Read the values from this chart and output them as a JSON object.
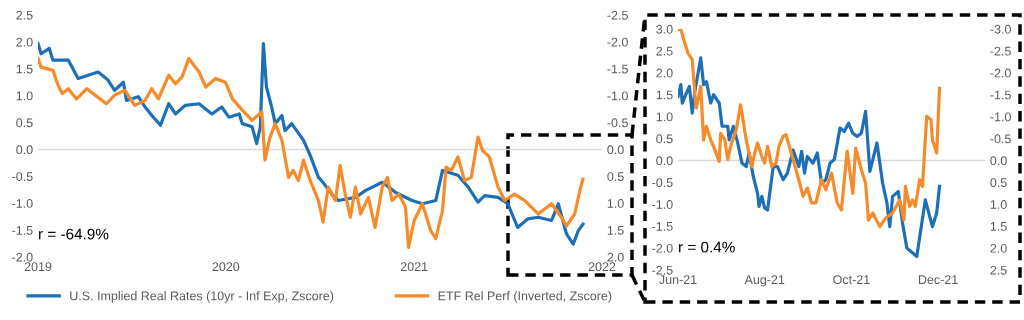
{
  "chart_data": [
    {
      "type": "line",
      "xlim": [
        "2019-01-01",
        "2022-01-01"
      ],
      "xticks": [
        {
          "value": "2019-01-01",
          "label": "2019"
        },
        {
          "value": "2020-01-01",
          "label": "2020"
        },
        {
          "value": "2021-01-01",
          "label": "2021"
        },
        {
          "value": "2022-01-01",
          "label": "2022"
        }
      ],
      "ylim": [
        -2.0,
        2.5
      ],
      "yticks": [
        {
          "value": -2,
          "label": "-2.0"
        },
        {
          "value": -1.5,
          "label": "-1.5"
        },
        {
          "value": -1,
          "label": "-1.0"
        },
        {
          "value": -0.5,
          "label": "-0.5"
        },
        {
          "value": 0,
          "label": "0.0"
        },
        {
          "value": 0.5,
          "label": "0.5"
        },
        {
          "value": 1,
          "label": "1.0"
        },
        {
          "value": 1.5,
          "label": "1.5"
        },
        {
          "value": 2,
          "label": "2.0"
        },
        {
          "value": 2.5,
          "label": "2.5"
        }
      ],
      "y2lim": [
        2.0,
        -2.5
      ],
      "y2ticks": [
        {
          "value": 2,
          "label": "2.0"
        },
        {
          "value": 1.5,
          "label": "1.5"
        },
        {
          "value": 1,
          "label": "1.0"
        },
        {
          "value": 0.5,
          "label": "0.5"
        },
        {
          "value": 0,
          "label": "0.0"
        },
        {
          "value": -0.5,
          "label": "-0.5"
        },
        {
          "value": -1,
          "label": "-1.0"
        },
        {
          "value": -1.5,
          "label": "-1.5"
        },
        {
          "value": -2,
          "label": "-2.0"
        },
        {
          "value": -2.5,
          "label": "-2.5"
        }
      ],
      "grid": false,
      "legend": "bottom",
      "ref_lines": [
        {
          "axis": "y",
          "value": 0,
          "color": "#d9d9d9"
        }
      ],
      "annotations": [
        "r = -64.9%"
      ],
      "series": [
        {
          "name": "U.S. Implied Real Rates (10yr - Inf Exp, Zscore)",
          "color": "#1f6fb6",
          "axis": "y",
          "x": [
            "2019-01-01",
            "2019-01-07",
            "2019-01-23",
            "2019-01-30",
            "2019-03-01",
            "2019-03-20",
            "2019-04-28",
            "2019-05-17",
            "2019-05-30",
            "2019-06-16",
            "2019-06-22",
            "2019-07-15",
            "2019-07-28",
            "2019-08-13",
            "2019-08-27",
            "2019-09-12",
            "2019-09-25",
            "2019-10-14",
            "2019-11-10",
            "2019-12-05",
            "2019-12-24",
            "2020-01-07",
            "2020-01-27",
            "2020-02-02",
            "2020-02-21",
            "2020-03-01",
            "2020-03-08",
            "2020-03-14",
            "2020-03-20",
            "2020-03-30",
            "2020-04-06",
            "2020-04-19",
            "2020-04-25",
            "2020-05-08",
            "2020-05-31",
            "2020-06-13",
            "2020-06-29",
            "2020-07-05",
            "2020-07-25",
            "2020-08-07",
            "2020-09-09",
            "2020-09-29",
            "2020-10-31",
            "2020-11-26",
            "2020-12-28",
            "2021-01-17",
            "2021-02-12",
            "2021-02-25",
            "2021-03-27",
            "2021-04-16",
            "2021-05-05",
            "2021-05-18",
            "2021-06-13",
            "2021-07-02",
            "2021-07-21",
            "2021-08-10",
            "2021-08-30",
            "2021-09-25",
            "2021-10-08",
            "2021-10-24",
            "2021-11-06",
            "2021-11-16",
            "2021-11-25"
          ],
          "values": [
            1.97,
            1.78,
            1.88,
            1.66,
            1.66,
            1.32,
            1.44,
            1.29,
            1.1,
            1.25,
            0.91,
            0.98,
            0.79,
            0.6,
            0.45,
            0.85,
            0.66,
            0.82,
            0.85,
            0.66,
            0.79,
            0.6,
            0.66,
            0.48,
            0.42,
            0.11,
            0.42,
            1.97,
            1.16,
            0.79,
            0.48,
            0.63,
            0.35,
            0.48,
            0.17,
            -0.11,
            -0.52,
            -0.58,
            -0.83,
            -0.95,
            -0.89,
            -0.76,
            -0.61,
            -0.8,
            -0.95,
            -1.01,
            -0.95,
            -0.39,
            -0.48,
            -0.7,
            -0.98,
            -0.86,
            -0.89,
            -1.01,
            -1.45,
            -1.29,
            -1.26,
            -1.32,
            -1.01,
            -1.57,
            -1.76,
            -1.51,
            -1.39
          ]
        },
        {
          "name": "ETF Rel Perf (Inverted, Zscore)",
          "color": "#f58b2a",
          "axis": "y2",
          "x": [
            "2019-01-01",
            "2019-01-07",
            "2019-01-30",
            "2019-02-08",
            "2019-02-17",
            "2019-03-01",
            "2019-03-17",
            "2019-04-06",
            "2019-04-22",
            "2019-05-14",
            "2019-05-30",
            "2019-06-19",
            "2019-07-08",
            "2019-07-28",
            "2019-08-10",
            "2019-08-23",
            "2019-09-12",
            "2019-09-25",
            "2019-10-08",
            "2019-10-21",
            "2019-11-10",
            "2019-11-23",
            "2019-12-12",
            "2019-12-31",
            "2020-01-14",
            "2020-02-02",
            "2020-02-21",
            "2020-03-11",
            "2020-03-17",
            "2020-03-27",
            "2020-04-06",
            "2020-04-19",
            "2020-05-02",
            "2020-05-11",
            "2020-05-21",
            "2020-05-31",
            "2020-06-13",
            "2020-06-29",
            "2020-07-08",
            "2020-07-18",
            "2020-08-01",
            "2020-08-10",
            "2020-08-20",
            "2020-08-30",
            "2020-09-09",
            "2020-09-19",
            "2020-10-04",
            "2020-10-17",
            "2020-10-31",
            "2020-11-10",
            "2020-11-19",
            "2020-12-02",
            "2020-12-15",
            "2020-12-21",
            "2021-01-01",
            "2021-01-17",
            "2021-02-02",
            "2021-02-12",
            "2021-02-25",
            "2021-03-04",
            "2021-03-14",
            "2021-03-27",
            "2021-04-09",
            "2021-04-22",
            "2021-05-05",
            "2021-05-14",
            "2021-05-27",
            "2021-06-13",
            "2021-06-26",
            "2021-07-15",
            "2021-08-04",
            "2021-08-30",
            "2021-09-25",
            "2021-10-14",
            "2021-10-24",
            "2021-11-09",
            "2021-11-19",
            "2021-11-25"
          ],
          "values": [
            -1.69,
            -1.53,
            -1.47,
            -1.22,
            -1.04,
            -1.13,
            -0.94,
            -1.13,
            -1.01,
            -0.85,
            -1.01,
            -1.1,
            -0.82,
            -0.91,
            -1.13,
            -0.94,
            -1.38,
            -1.22,
            -1.35,
            -1.69,
            -1.44,
            -1.16,
            -1.32,
            -1.25,
            -0.94,
            -0.73,
            -0.54,
            -0.7,
            0.2,
            -0.23,
            -0.48,
            -0.17,
            0.52,
            0.39,
            0.58,
            0.2,
            0.58,
            0.95,
            1.35,
            0.7,
            0.95,
            0.3,
            0.83,
            1.26,
            0.7,
            1.2,
            0.89,
            1.45,
            0.7,
            0.52,
            0.95,
            0.83,
            1.07,
            1.82,
            1.32,
            1.01,
            1.51,
            1.66,
            1.14,
            0.33,
            0.39,
            0.14,
            0.58,
            0.52,
            -0.23,
            0.02,
            0.14,
            0.7,
            0.95,
            0.83,
            0.95,
            1.2,
            1.01,
            1.26,
            1.42,
            1.2,
            0.76,
            0.55
          ]
        }
      ]
    },
    {
      "type": "line",
      "xlim": [
        "2021-06-01",
        "2022-01-03"
      ],
      "xticks": [
        {
          "value": "2021-06-01",
          "label": "Jun-21"
        },
        {
          "value": "2021-08-01",
          "label": "Aug-21"
        },
        {
          "value": "2021-10-01",
          "label": "Oct-21"
        },
        {
          "value": "2021-12-01",
          "label": "Dec-21"
        }
      ],
      "ylim": [
        -2.5,
        3.0
      ],
      "yticks": [
        {
          "value": -2.5,
          "label": "-2.5"
        },
        {
          "value": -2,
          "label": "-2.0"
        },
        {
          "value": -1.5,
          "label": "-1.5"
        },
        {
          "value": -1,
          "label": "-1.0"
        },
        {
          "value": -0.5,
          "label": "-0.5"
        },
        {
          "value": 0,
          "label": "0.0"
        },
        {
          "value": 0.5,
          "label": "0.5"
        },
        {
          "value": 1,
          "label": "1.0"
        },
        {
          "value": 1.5,
          "label": "1.5"
        },
        {
          "value": 2,
          "label": "2.0"
        },
        {
          "value": 2.5,
          "label": "2.5"
        },
        {
          "value": 3,
          "label": "3.0"
        }
      ],
      "y2lim": [
        2.5,
        -3.0
      ],
      "y2ticks": [
        {
          "value": 2.5,
          "label": "2.5"
        },
        {
          "value": 2,
          "label": "2.0"
        },
        {
          "value": 1.5,
          "label": "1.5"
        },
        {
          "value": 1,
          "label": "1.0"
        },
        {
          "value": 0.5,
          "label": "0.5"
        },
        {
          "value": 0,
          "label": "0.0"
        },
        {
          "value": -0.5,
          "label": "-0.5"
        },
        {
          "value": -1,
          "label": "-1.0"
        },
        {
          "value": -1.5,
          "label": "-1.5"
        },
        {
          "value": -2,
          "label": "-2.0"
        },
        {
          "value": -2.5,
          "label": "-2.5"
        },
        {
          "value": -3,
          "label": "-3.0"
        }
      ],
      "grid": false,
      "ref_lines": [
        {
          "axis": "y",
          "value": 0,
          "color": "#d9d9d9"
        }
      ],
      "annotations": [
        "r = 0.4%"
      ],
      "series": [
        {
          "color": "#1f6fb6",
          "axis": "y",
          "x": [
            "2021-06-01",
            "2021-06-03",
            "2021-06-04",
            "2021-06-07",
            "2021-06-09",
            "2021-06-11",
            "2021-06-13",
            "2021-06-17",
            "2021-06-19",
            "2021-06-21",
            "2021-06-24",
            "2021-06-26",
            "2021-06-30",
            "2021-07-02",
            "2021-07-06",
            "2021-07-07",
            "2021-07-10",
            "2021-07-13",
            "2021-07-16",
            "2021-07-19",
            "2021-07-21",
            "2021-07-24",
            "2021-07-27",
            "2021-07-28",
            "2021-07-30",
            "2021-08-01",
            "2021-08-03",
            "2021-08-07",
            "2021-08-10",
            "2021-08-14",
            "2021-08-17",
            "2021-08-21",
            "2021-08-25",
            "2021-08-27",
            "2021-08-29",
            "2021-08-31",
            "2021-09-04",
            "2021-09-07",
            "2021-09-10",
            "2021-09-13",
            "2021-09-16",
            "2021-09-19",
            "2021-09-23",
            "2021-09-26",
            "2021-09-29",
            "2021-10-02",
            "2021-10-05",
            "2021-10-08",
            "2021-10-11",
            "2021-10-14",
            "2021-10-19",
            "2021-10-23",
            "2021-10-26",
            "2021-10-28",
            "2021-10-30",
            "2021-11-03",
            "2021-11-06",
            "2021-11-09",
            "2021-11-16",
            "2021-11-22",
            "2021-11-27",
            "2021-11-30",
            "2021-12-02"
          ],
          "values": [
            1.46,
            1.73,
            1.31,
            1.54,
            1.69,
            1.08,
            1.61,
            2.34,
            1.73,
            1.8,
            1.31,
            1.5,
            1.31,
            0.78,
            0.78,
            0.47,
            0.78,
            0.4,
            -0.06,
            -0.14,
            0.17,
            -0.37,
            -0.75,
            -1.05,
            -0.82,
            -1.09,
            -1.13,
            -0.14,
            -0.14,
            -0.44,
            -0.29,
            0.24,
            -0.14,
            0.21,
            -0.29,
            0.09,
            -0.06,
            0.17,
            -0.52,
            -0.44,
            -0.06,
            0.02,
            0.74,
            0.66,
            0.85,
            0.62,
            0.55,
            0.62,
            1.12,
            -0.25,
            0.4,
            -0.52,
            -0.97,
            -1.51,
            -0.82,
            -0.71,
            -1.43,
            -2.0,
            -2.19,
            -0.9,
            -1.51,
            -1.2,
            -0.59
          ]
        },
        {
          "color": "#f58b2a",
          "axis": "y2",
          "x": [
            "2021-06-01",
            "2021-06-03",
            "2021-06-05",
            "2021-06-08",
            "2021-06-11",
            "2021-06-13",
            "2021-06-14",
            "2021-06-17",
            "2021-06-19",
            "2021-06-21",
            "2021-06-24",
            "2021-06-26",
            "2021-06-30",
            "2021-07-01",
            "2021-07-04",
            "2021-07-06",
            "2021-07-08",
            "2021-07-12",
            "2021-07-15",
            "2021-07-19",
            "2021-07-23",
            "2021-07-25",
            "2021-07-27",
            "2021-07-30",
            "2021-08-01",
            "2021-08-03",
            "2021-08-06",
            "2021-08-09",
            "2021-08-11",
            "2021-08-14",
            "2021-08-16",
            "2021-08-21",
            "2021-08-25",
            "2021-08-28",
            "2021-08-31",
            "2021-09-03",
            "2021-09-06",
            "2021-09-10",
            "2021-09-13",
            "2021-09-17",
            "2021-09-21",
            "2021-09-24",
            "2021-09-28",
            "2021-10-02",
            "2021-10-04",
            "2021-10-08",
            "2021-10-11",
            "2021-10-13",
            "2021-10-16",
            "2021-10-21",
            "2021-10-25",
            "2021-10-30",
            "2021-11-04",
            "2021-11-07",
            "2021-11-08",
            "2021-11-11",
            "2021-11-13",
            "2021-11-15",
            "2021-11-18",
            "2021-11-20",
            "2021-11-23",
            "2021-11-26",
            "2021-11-27",
            "2021-11-30",
            "2021-12-02"
          ],
          "values": [
            -2.99,
            -2.99,
            -2.76,
            -2.45,
            -2.3,
            -1.46,
            -1.2,
            -1.69,
            -0.47,
            -0.78,
            -0.47,
            -0.32,
            0.02,
            -0.62,
            -0.47,
            -0.02,
            -0.32,
            -0.7,
            -1.27,
            -0.47,
            0.14,
            -0.17,
            -0.4,
            -0.09,
            0.06,
            -0.32,
            0.14,
            0.06,
            -0.32,
            -0.55,
            -0.59,
            -0.02,
            0.44,
            0.82,
            0.63,
            0.97,
            0.97,
            0.44,
            0.67,
            0.29,
            0.97,
            1.13,
            -0.21,
            0.75,
            -0.28,
            0.21,
            0.52,
            1.36,
            1.2,
            1.51,
            1.32,
            1.2,
            0.9,
            1.36,
            0.59,
            1.05,
            0.9,
            1.05,
            0.44,
            0.59,
            -1.01,
            -0.93,
            -0.47,
            -0.17,
            -1.65
          ]
        }
      ]
    }
  ]
}
